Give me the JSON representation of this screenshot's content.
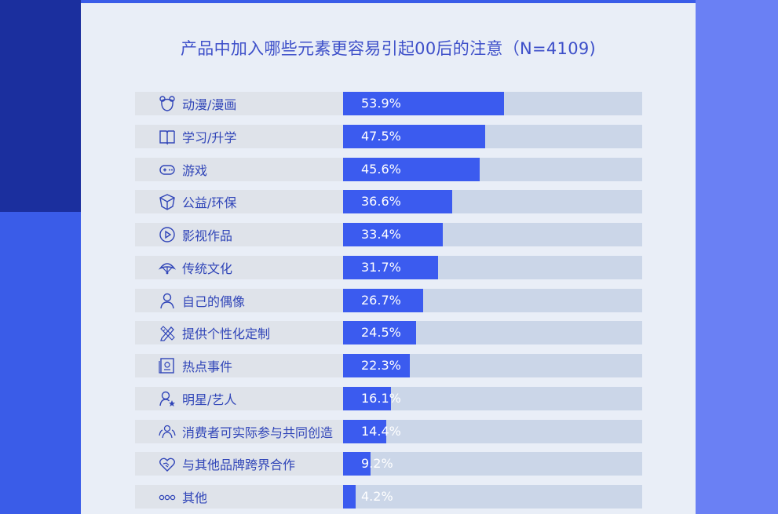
{
  "chart_data": {
    "type": "bar",
    "orientation": "horizontal",
    "title": "产品中加入哪些元素更容易引起00后的注意（N=4109)",
    "xlim": [
      0,
      100
    ],
    "categories": [
      "动漫/漫画",
      "学习/升学",
      "游戏",
      "公益/环保",
      "影视作品",
      "传统文化",
      "自己的偶像",
      "提供个性化定制",
      "热点事件",
      "明星/艺人",
      "消费者可实际参与共同创造",
      "与其他品牌跨界合作",
      "其他"
    ],
    "values": [
      53.9,
      47.5,
      45.6,
      36.6,
      33.4,
      31.7,
      26.7,
      24.5,
      22.3,
      16.1,
      14.4,
      9.2,
      4.2
    ],
    "value_labels": [
      "53.9%",
      "47.5%",
      "45.6%",
      "36.6%",
      "33.4%",
      "31.7%",
      "26.7%",
      "24.5%",
      "22.3%",
      "16.1%",
      "14.4%",
      "9.2%",
      "4.2%"
    ],
    "icons": [
      "bear-icon",
      "book-icon",
      "gamepad-icon",
      "recycle-icon",
      "play-icon",
      "fan-icon",
      "person-icon",
      "pencil-ruler-icon",
      "news-icon",
      "star-person-icon",
      "group-icon",
      "handshake-heart-icon",
      "dots-icon"
    ],
    "grid": false,
    "legend": "none"
  },
  "colors": {
    "bar": "#3b5bef",
    "track": "#cbd6e8",
    "label_bg": "#dfe3ea",
    "label_text": "#3045b8",
    "title_text": "#3d4fc9",
    "panel_bg": "#e9eef7"
  }
}
